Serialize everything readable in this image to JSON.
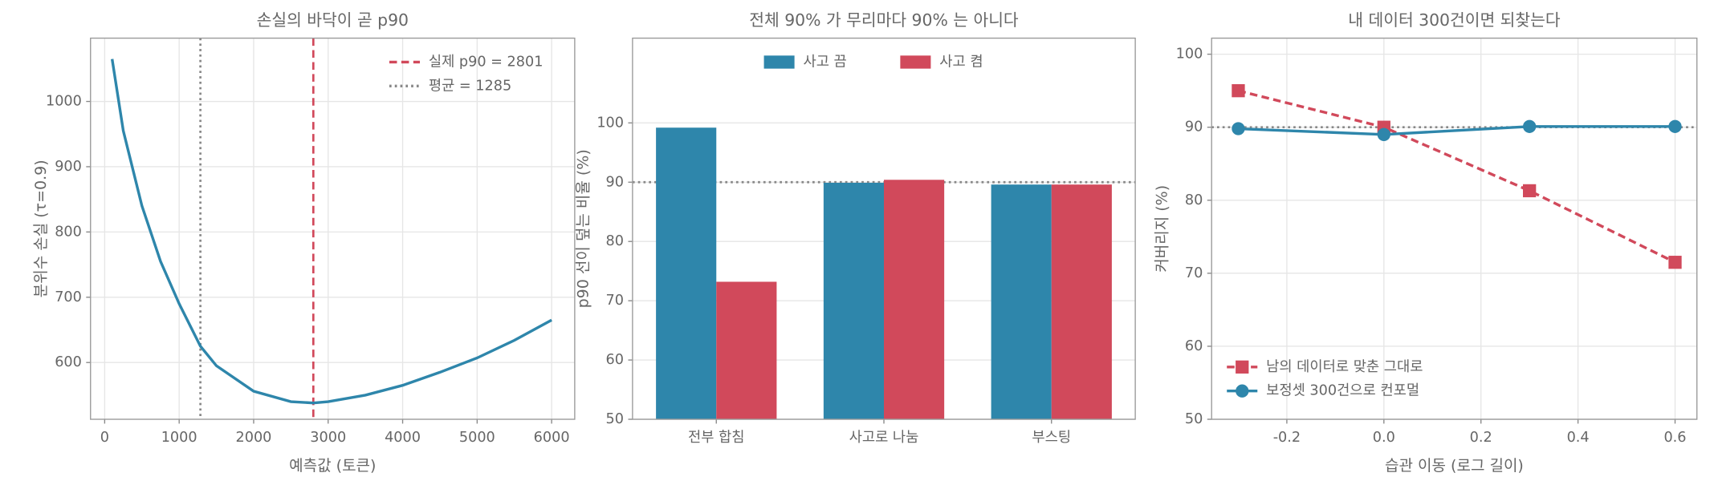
{
  "chart_data": [
    {
      "type": "line",
      "title": "손실의 바닥이 곧 p90",
      "xlabel": "예측값 (토큰)",
      "ylabel": "분위수 손실 (τ=0.9)",
      "x": [
        100,
        250,
        500,
        750,
        1000,
        1285,
        1500,
        2000,
        2500,
        2801,
        3000,
        3500,
        4000,
        4500,
        5000,
        5500,
        6000
      ],
      "series": [
        {
          "color": "#2e86ab",
          "style": "solid",
          "values": [
            1065,
            955,
            840,
            755,
            690,
            625,
            595,
            556,
            540,
            538,
            540,
            550,
            565,
            585,
            607,
            634,
            665
          ]
        }
      ],
      "xlim": [
        -190,
        6310
      ],
      "ylim": [
        513,
        1097
      ],
      "xticks": [
        0,
        1000,
        2000,
        3000,
        4000,
        5000,
        6000
      ],
      "yticks": [
        600,
        700,
        800,
        900,
        1000
      ],
      "reference_lines": [
        {
          "axis": "x",
          "value": 2801,
          "label": "실제 p90 = 2801",
          "color": "#d1495b",
          "style": "dashed"
        },
        {
          "axis": "x",
          "value": 1285,
          "label": "평균 = 1285",
          "color": "#888888",
          "style": "dotted"
        }
      ],
      "grid": true,
      "legend": "upper right"
    },
    {
      "type": "bar",
      "title": "전체 90% 가 무리마다 90% 는 아니다",
      "ylabel": "p90 선이 덮는 비율 (%)",
      "categories": [
        "전부 합침",
        "사고로 나눔",
        "부스팅"
      ],
      "series": [
        {
          "name": "사고 끔",
          "color": "#2e86ab",
          "values": [
            99.2,
            89.9,
            89.6
          ]
        },
        {
          "name": "사고 켬",
          "color": "#d1495b",
          "values": [
            73.2,
            90.4,
            89.6
          ]
        }
      ],
      "ylim": [
        50,
        114.3
      ],
      "yticks": [
        50,
        60,
        70,
        80,
        90,
        100
      ],
      "reference_lines": [
        {
          "axis": "y",
          "value": 90,
          "color": "#888888",
          "style": "dotted"
        }
      ],
      "grid": true,
      "legend": "upper center"
    },
    {
      "type": "line",
      "title": "내 데이터 300건이면 되찾는다",
      "xlabel": "습관 이동 (로그 길이)",
      "ylabel": "커버리지 (%)",
      "x": [
        -0.3,
        0,
        0.3,
        0.6
      ],
      "series": [
        {
          "name": "남의 데이터로 맞춘 그대로",
          "color": "#d1495b",
          "style": "dashed",
          "marker": "square",
          "values": [
            95,
            90,
            81.3,
            71.5
          ]
        },
        {
          "name": "보정셋 300건으로 컨포멀",
          "color": "#2e86ab",
          "style": "solid",
          "marker": "circle",
          "values": [
            89.8,
            89.0,
            90.1,
            90.1
          ]
        }
      ],
      "xlim": [
        -0.355,
        0.645
      ],
      "ylim": [
        50,
        102.2
      ],
      "xticks": [
        -0.2,
        {
          "value": 0,
          "label": "0.0"
        },
        0.2,
        0.4,
        0.6
      ],
      "yticks": [
        50,
        60,
        70,
        80,
        90,
        100
      ],
      "reference_lines": [
        {
          "axis": "y",
          "value": 90,
          "color": "#888888",
          "style": "dotted"
        }
      ],
      "grid": true,
      "legend": "lower left"
    }
  ]
}
